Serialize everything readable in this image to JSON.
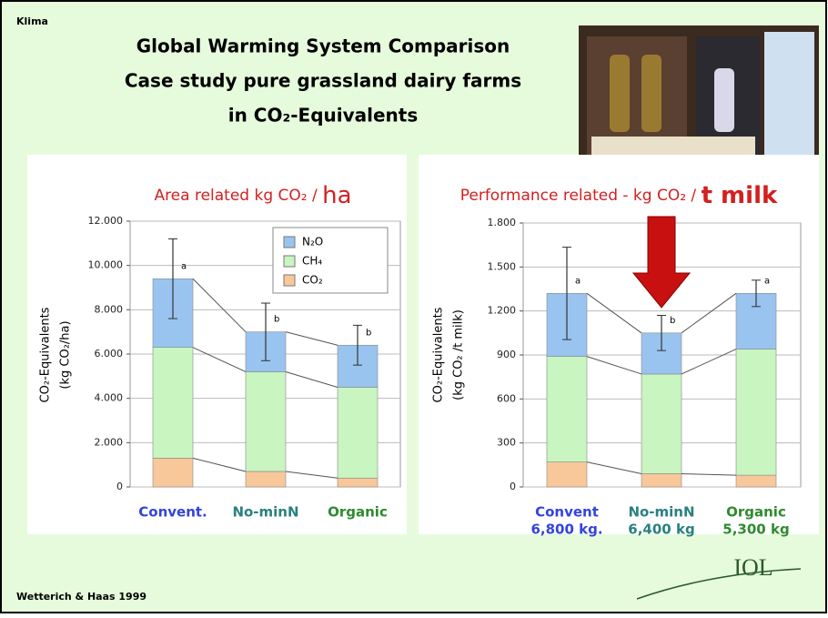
{
  "header_label": "Klima",
  "title_lines": [
    "Global Warming System Comparison",
    "Case study pure grassland dairy farms",
    "in CO₂-Equivalents"
  ],
  "footer": "Wetterich & Haas 1999",
  "logo": "IOL",
  "chart_data": [
    {
      "type": "stacked_bar",
      "title": "Area related kg CO₂ /",
      "title_unit": "ha",
      "ylabel": "CO₂-Equivalents",
      "ylabel2": "(kg CO₂/ha)",
      "categories": [
        "Convent.",
        "No-minN",
        "Organic"
      ],
      "category_colors": [
        "#3344dd",
        "#2a8080",
        "#2e8b2e"
      ],
      "series": [
        {
          "name": "CO₂",
          "color": "#f8c89a",
          "values": [
            1300,
            700,
            400
          ]
        },
        {
          "name": "CH₄",
          "color": "#c8f5c0",
          "values": [
            5000,
            4500,
            4100
          ]
        },
        {
          "name": "N₂O",
          "color": "#99c4f0",
          "values": [
            3100,
            1800,
            1900
          ]
        }
      ],
      "errors": [
        1800,
        1300,
        900
      ],
      "annotations": [
        "a",
        "b",
        "b"
      ],
      "ylim": [
        0,
        12000
      ],
      "yticks": [
        0,
        {
          "value": 2000,
          "label": "2.000"
        },
        {
          "value": 4000,
          "label": "4.000"
        },
        {
          "value": 6000,
          "label": "6.000"
        },
        {
          "value": 8000,
          "label": "8.000"
        },
        {
          "value": 10000,
          "label": "10.000"
        },
        {
          "value": 12000,
          "label": "12.000"
        }
      ],
      "grid": true,
      "legend": "top-right"
    },
    {
      "type": "stacked_bar",
      "title": "Performance related - kg CO₂ /",
      "title_unit": "t milk",
      "ylabel": "CO₂-Equivalents",
      "ylabel2": "(kg CO₂ /t milk)",
      "categories": [
        "Convent",
        "No-minN",
        "Organic"
      ],
      "category_sublabels": [
        "6,800 kg.",
        "6,400 kg",
        "5,300 kg"
      ],
      "category_colors": [
        "#3344dd",
        "#2a8080",
        "#2e8b2e"
      ],
      "series": [
        {
          "color": "#f8c89a",
          "values": [
            170,
            90,
            80
          ]
        },
        {
          "color": "#c8f5c0",
          "values": [
            720,
            680,
            860
          ]
        },
        {
          "color": "#99c4f0",
          "values": [
            430,
            280,
            380
          ]
        }
      ],
      "errors": [
        315,
        120,
        90
      ],
      "annotations": [
        "a",
        "b",
        "a"
      ],
      "ylim": [
        0,
        1800
      ],
      "yticks": [
        0,
        300,
        600,
        900,
        {
          "value": 1200,
          "label": "1.200"
        },
        {
          "value": 1500,
          "label": "1.500"
        },
        {
          "value": 1800,
          "label": "1.800"
        }
      ],
      "grid": true
    }
  ]
}
